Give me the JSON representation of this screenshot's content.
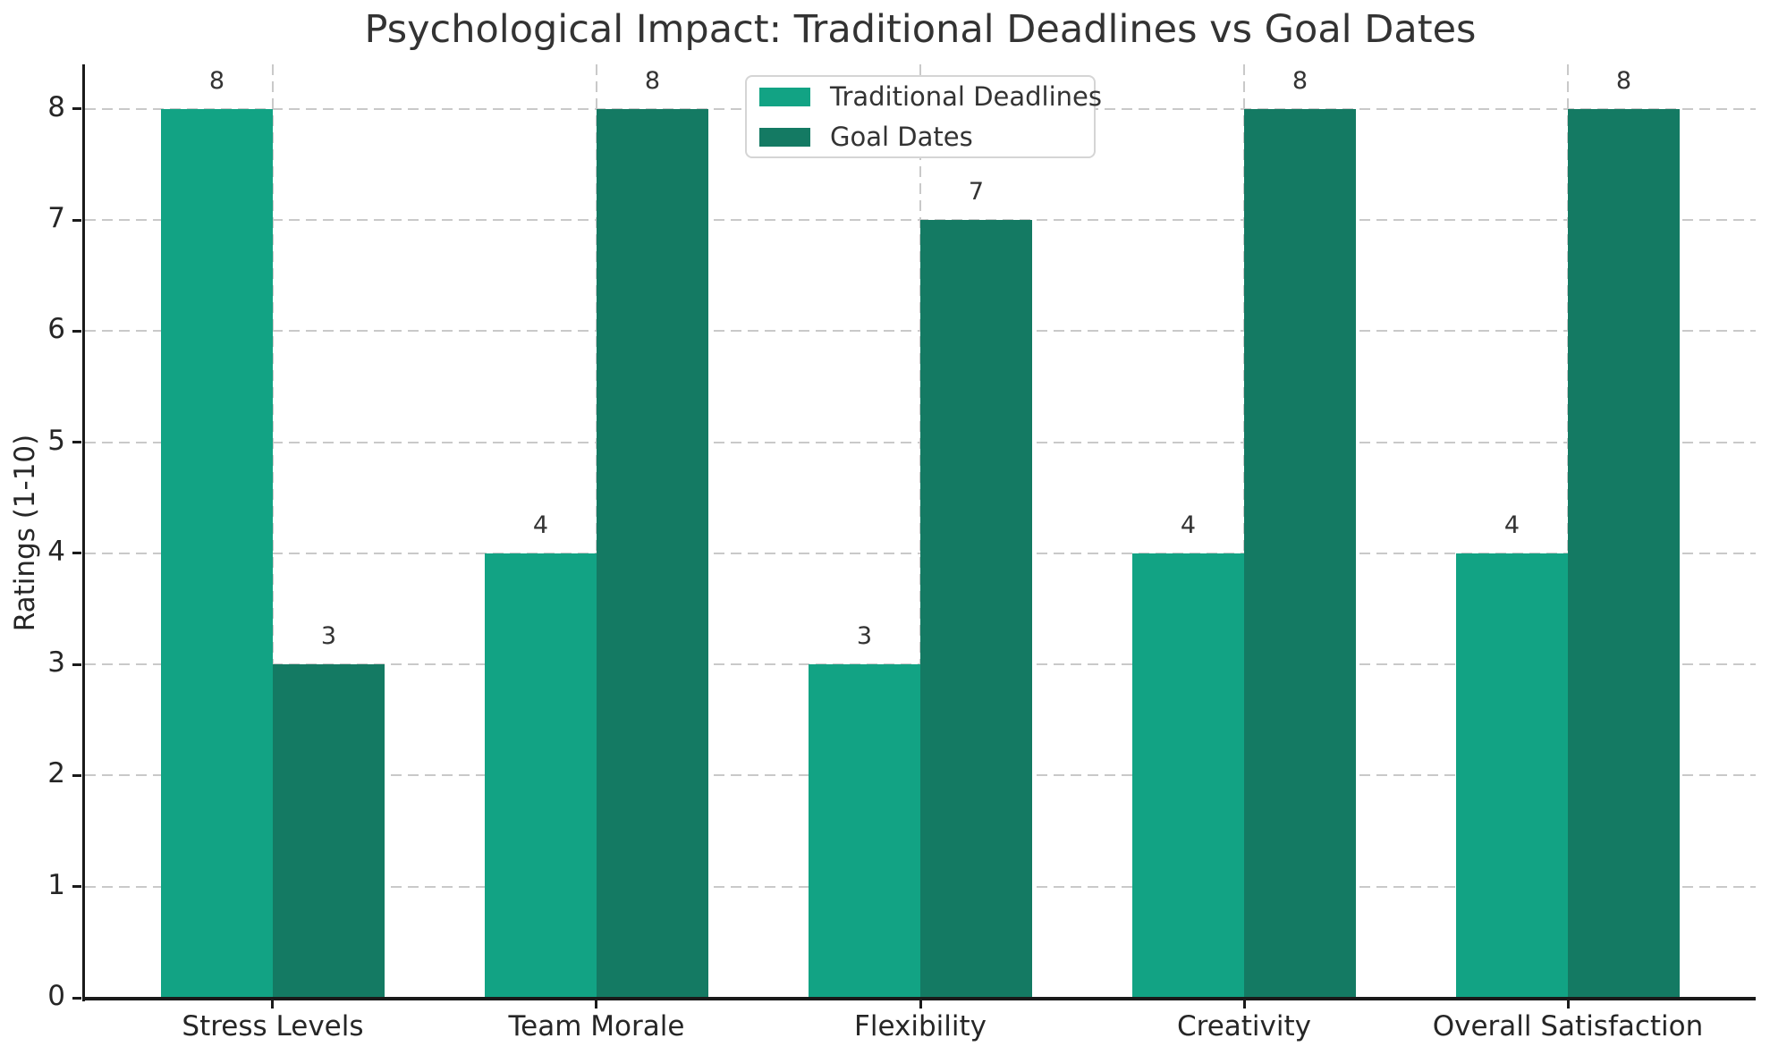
{
  "chart_data": {
    "type": "bar",
    "title": "Psychological Impact: Traditional Deadlines vs Goal Dates",
    "categories": [
      "Stress Levels",
      "Team Morale",
      "Flexibility",
      "Creativity",
      "Overall Satisfaction"
    ],
    "series": [
      {
        "name": "Traditional Deadlines",
        "color": "#12a384",
        "values": [
          8,
          4,
          3,
          4,
          4
        ]
      },
      {
        "name": "Goal Dates",
        "color": "#147a63",
        "values": [
          3,
          8,
          7,
          8,
          8
        ]
      }
    ],
    "xlabel": "",
    "ylabel": "Ratings (1-10)",
    "ylim": [
      0,
      8.4
    ],
    "yticks": [
      0,
      1,
      2,
      3,
      4,
      5,
      6,
      7,
      8
    ],
    "grid": true,
    "grid_style": "dashed",
    "bar_value_labels": true,
    "legend_position": "upper center"
  },
  "colors": {
    "series_1": "#12a384",
    "series_2": "#147a63",
    "grid": "#c9c9c9",
    "spine": "#1a1a1a",
    "text": "#333333",
    "legend_border": "#d5d5d5",
    "background": "#ffffff"
  }
}
